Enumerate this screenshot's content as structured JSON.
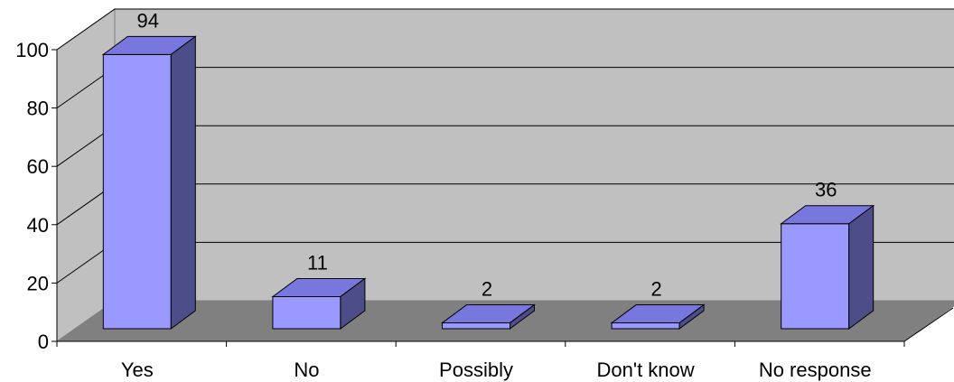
{
  "chart_data": {
    "type": "bar",
    "categories": [
      "Yes",
      "No",
      "Possibly",
      "Don't know",
      "No response"
    ],
    "values": [
      94,
      11,
      2,
      2,
      36
    ],
    "data_labels": [
      "94",
      "11",
      "2",
      "2",
      "36"
    ],
    "y_ticks": [
      "0",
      "20",
      "40",
      "60",
      "80",
      "100"
    ],
    "ylim": [
      0,
      100
    ],
    "grid": true,
    "three_d": true,
    "colors": {
      "bar_front": "#9999FF",
      "bar_top": "#7777DD",
      "bar_side": "#4D4D8A",
      "back_wall": "#C0C0C0",
      "side_wall": "#C0C0C0",
      "floor": "#808080",
      "gridline": "#000000"
    }
  }
}
